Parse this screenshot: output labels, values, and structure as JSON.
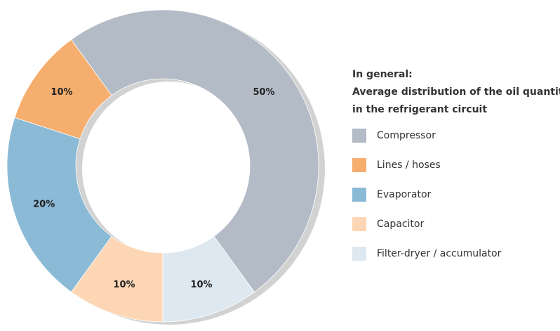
{
  "chart_data": {
    "type": "donut",
    "legend_title": [
      "In general:",
      "Average distribution of the oil quantity",
      "in the refrigerant circuit"
    ],
    "categories": [
      "Compressor",
      "Lines / hoses",
      "Evaporator",
      "Capacitor",
      "Filter-dryer / accumulator"
    ],
    "values": [
      50,
      10,
      20,
      10,
      10
    ],
    "value_labels": [
      "50%",
      "10%",
      "20%",
      "10%",
      "10%"
    ],
    "colors": [
      "#b2bbc6",
      "#f6ae6f",
      "#8bbad6",
      "#fdd6b5",
      "#dde8f0"
    ],
    "legend": "right"
  }
}
